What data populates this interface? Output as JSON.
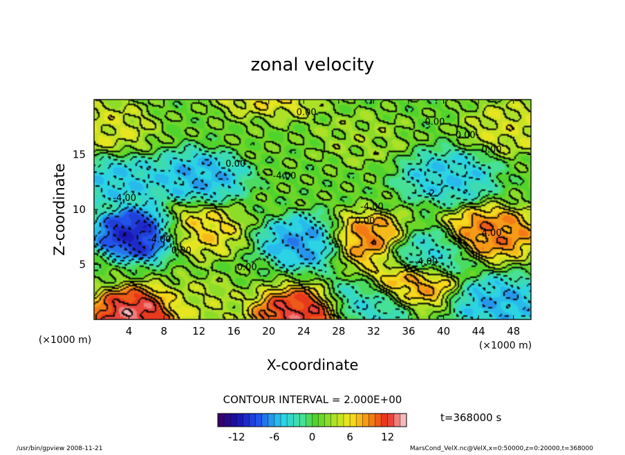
{
  "chart_data": {
    "type": "heatmap",
    "title": "zonal velocity",
    "xlabel": "X-coordinate",
    "ylabel": "Z-coordinate",
    "x_unit": "(×1000 m)",
    "y_unit": "(×1000 m)",
    "x_ticks": [
      4,
      8,
      12,
      16,
      20,
      24,
      28,
      32,
      36,
      40,
      44,
      48
    ],
    "y_ticks": [
      5,
      10,
      15
    ],
    "xlim": [
      0,
      50
    ],
    "ylim": [
      0,
      20
    ],
    "contour_interval_text": "CONTOUR INTERVAL = 2.000E+00",
    "time_text": "t=368000 s",
    "colorbar": {
      "min": -15,
      "max": 15,
      "ticks": [
        -12,
        -6,
        0,
        6,
        12
      ]
    },
    "contour_labels": [
      {
        "text": "0.00",
        "x": 24.3,
        "y": 18.6
      },
      {
        "text": "0.00",
        "x": 39.0,
        "y": 17.7
      },
      {
        "text": "0.00",
        "x": 42.5,
        "y": 16.5
      },
      {
        "text": "0.00",
        "x": 45.5,
        "y": 15.2
      },
      {
        "text": "0.00",
        "x": 16.2,
        "y": 13.9
      },
      {
        "text": "-4.00",
        "x": 21.8,
        "y": 12.8
      },
      {
        "text": "-4.00",
        "x": 3.5,
        "y": 10.8
      },
      {
        "text": "-4.00",
        "x": 31.8,
        "y": 10.0
      },
      {
        "text": "-4.00",
        "x": 7.5,
        "y": 7.0
      },
      {
        "text": "0.00",
        "x": 10.0,
        "y": 6.0
      },
      {
        "text": "0.00",
        "x": 17.5,
        "y": 4.5
      },
      {
        "text": "-4.00",
        "x": 38.0,
        "y": 5.0
      },
      {
        "text": "0.00",
        "x": 31.0,
        "y": 8.7
      },
      {
        "text": "4.00",
        "x": 45.5,
        "y": 7.6
      },
      {
        "text": "-2",
        "x": 38.5,
        "y": 11.2
      }
    ],
    "field_features": [
      {
        "x": 5.5,
        "y": 7.8,
        "value": -12
      },
      {
        "x": 5.0,
        "y": 0.5,
        "value": 14
      },
      {
        "x": 23.5,
        "y": 0.5,
        "value": 13
      },
      {
        "x": 31.0,
        "y": 7.2,
        "value": 10
      },
      {
        "x": 45.5,
        "y": 7.8,
        "value": 10
      },
      {
        "x": 11.5,
        "y": 8.0,
        "value": 7
      },
      {
        "x": 36.0,
        "y": 3.2,
        "value": 9
      },
      {
        "x": 20.0,
        "y": 19.8,
        "value": 6
      },
      {
        "x": 1.5,
        "y": 17.5,
        "value": 5
      },
      {
        "x": 48.0,
        "y": 17.5,
        "value": 5
      },
      {
        "x": 30.5,
        "y": 16.5,
        "value": 3
      },
      {
        "x": 24.5,
        "y": 7.0,
        "value": -7
      },
      {
        "x": 12.0,
        "y": 13.0,
        "value": -6
      },
      {
        "x": 40.5,
        "y": 13.0,
        "value": -5
      },
      {
        "x": 3.0,
        "y": 12.5,
        "value": -5
      },
      {
        "x": 38.0,
        "y": 6.0,
        "value": -4
      },
      {
        "x": 46.5,
        "y": 1.5,
        "value": -6
      },
      {
        "x": 31.5,
        "y": 1.5,
        "value": -4
      },
      {
        "x": 12.0,
        "y": 1.5,
        "value": 4
      },
      {
        "x": 19.5,
        "y": 17.0,
        "value": 1.5
      }
    ]
  },
  "footer": {
    "left": "/usr/bin/gpview   2008-11-21",
    "right": "MarsCond_VelX.nc@VelX,x=0:50000,z=0:20000,t=368000"
  }
}
